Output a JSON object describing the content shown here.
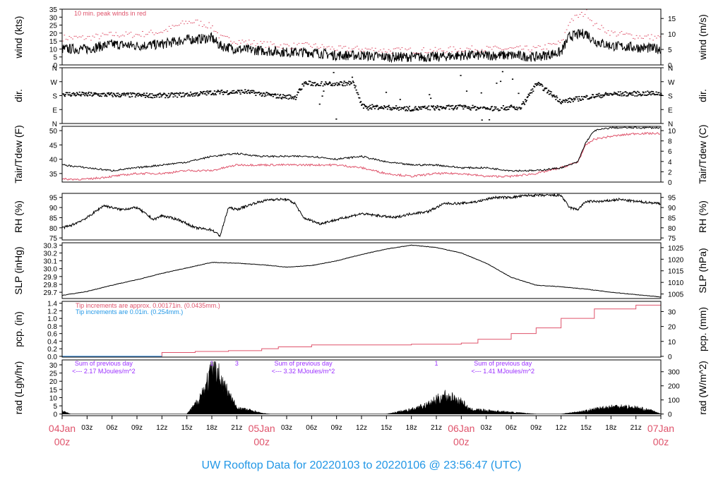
{
  "footer": {
    "title": "UW Rooftop Data for 20220103  to  20220106 @ 23:56:47  (UTC)"
  },
  "colors": {
    "main": "#000000",
    "peak": "#df536b",
    "dew": "#df536b",
    "tip_red": "#df536b",
    "tip_blue": "#2297e6",
    "sum": "#9b30ff",
    "date": "#df536b",
    "title": "#2297e6"
  },
  "xaxis": {
    "hour_labels": [
      "00z",
      "03z",
      "06z",
      "09z",
      "12z",
      "15z",
      "18z",
      "21z",
      "00z",
      "03z",
      "06z",
      "09z",
      "12z",
      "15z",
      "18z",
      "21z",
      "00z",
      "03z",
      "06z",
      "09z",
      "12z",
      "15z",
      "18z",
      "21z",
      "00z"
    ],
    "date_labels": [
      {
        "hour": 0,
        "date": "04Jan",
        "time": "00z"
      },
      {
        "hour": 24,
        "date": "05Jan",
        "time": "00z"
      },
      {
        "hour": 48,
        "date": "06Jan",
        "time": "00z"
      },
      {
        "hour": 72,
        "date": "07Jan",
        "time": "00z"
      }
    ],
    "range_hours": [
      0,
      72
    ]
  },
  "panels": {
    "wind": {
      "left_label": "wind (kts)",
      "right_label": "wind (m/s)",
      "left_ticks": [
        "0",
        "5",
        "10",
        "15",
        "20",
        "25",
        "30",
        "35"
      ],
      "right_ticks": [
        "0",
        "5",
        "10",
        "15"
      ],
      "note": "10 min. peak winds in red"
    },
    "dir": {
      "left_label": "dir.",
      "right_label": "dir.",
      "ticks": [
        "N",
        "E",
        "S",
        "W",
        "N"
      ]
    },
    "temp": {
      "left_label": "Tair/Tdew (F)",
      "right_label": "Tair/Tdew (C)",
      "left_ticks": [
        "35",
        "40",
        "45",
        "50"
      ],
      "right_ticks": [
        "0",
        "2",
        "4",
        "6",
        "8",
        "10"
      ]
    },
    "rh": {
      "left_label": "RH (%)",
      "right_label": "RH (%)",
      "ticks": [
        "75",
        "80",
        "85",
        "90",
        "95"
      ]
    },
    "slp": {
      "left_label": "SLP (inHg)",
      "right_label": "SLP (hPa)",
      "left_ticks": [
        "29.7",
        "29.8",
        "29.9",
        "30.0",
        "30.1",
        "30.2",
        "30.3"
      ],
      "right_ticks": [
        "1005",
        "1010",
        "1015",
        "1020",
        "1025"
      ]
    },
    "pcp": {
      "left_label": "pcp. (in)",
      "right_label": "pcp. (mm)",
      "left_ticks": [
        "0.0",
        "0.2",
        "0.4",
        "0.6",
        "0.8",
        "1.0",
        "1.2",
        "1.4"
      ],
      "right_ticks": [
        "0",
        "10",
        "20",
        "30"
      ],
      "note_red": "Tip increments are approx. 0.00171in. (0.0435mm.)",
      "note_blue": "Tip increments are 0.01in. (0.254mm.)"
    },
    "rad": {
      "left_label": "rad (Lgly/hr)",
      "right_label": "rad (W/m^2)",
      "left_ticks": [
        "0",
        "5",
        "10",
        "15",
        "20",
        "25",
        "30"
      ],
      "right_ticks": [
        "0",
        "100",
        "200",
        "300"
      ],
      "sums": [
        {
          "hour": 5,
          "line1": "Sum of previous day",
          "line2": "<--- 2.17 MJoules/m^2"
        },
        {
          "hour": 29,
          "line1": "Sum of previous day",
          "line2": "<--- 3.32 MJoules/m^2"
        },
        {
          "hour": 53,
          "line1": "Sum of previous day",
          "line2": "<--- 1.41 MJoules/m^2"
        }
      ],
      "tip_marks": [
        {
          "hour": 18,
          "text": "1"
        },
        {
          "hour": 21,
          "text": "3"
        },
        {
          "hour": 45,
          "text": "1"
        }
      ]
    }
  },
  "chart_data": {
    "type": "line",
    "x_unit": "hours since 04Jan 00z",
    "series": [
      {
        "name": "wind (kts)",
        "x": [
          0,
          3,
          6,
          9,
          12,
          15,
          16,
          18,
          19,
          21,
          24,
          27,
          30,
          33,
          36,
          39,
          42,
          45,
          48,
          51,
          54,
          57,
          60,
          61,
          63,
          64,
          66,
          69,
          72
        ],
        "values": [
          10,
          10,
          13,
          12,
          13,
          16,
          16,
          17,
          12,
          10,
          9,
          8,
          8,
          6,
          6,
          5,
          5,
          5,
          6,
          6,
          6,
          5,
          8,
          18,
          20,
          15,
          12,
          11,
          10
        ]
      },
      {
        "name": "10 min. peak winds in red",
        "x": [
          0,
          3,
          6,
          9,
          12,
          15,
          16,
          18,
          19,
          21,
          24,
          27,
          30,
          33,
          36,
          39,
          42,
          45,
          48,
          51,
          54,
          57,
          60,
          61,
          63,
          64,
          66,
          69,
          72
        ],
        "values": [
          17,
          17,
          19,
          19,
          21,
          27,
          27,
          24,
          17,
          15,
          13,
          12,
          12,
          10,
          10,
          9,
          9,
          9,
          10,
          10,
          10,
          10,
          14,
          28,
          33,
          25,
          20,
          18,
          17
        ]
      },
      {
        "name": "dir.",
        "x": [
          0,
          6,
          12,
          16,
          18,
          22,
          26,
          28,
          29,
          31,
          35,
          36,
          40,
          42,
          44,
          48,
          50,
          52,
          54,
          55,
          57,
          60,
          63,
          66,
          72
        ],
        "values": [
          190,
          185,
          180,
          190,
          200,
          205,
          175,
          170,
          260,
          255,
          260,
          110,
          100,
          95,
          100,
          105,
          100,
          95,
          105,
          95,
          260,
          140,
          170,
          190,
          195
        ]
      },
      {
        "name": "Tair (F)",
        "x": [
          0,
          3,
          6,
          9,
          12,
          15,
          18,
          21,
          24,
          27,
          30,
          33,
          36,
          39,
          42,
          45,
          48,
          51,
          54,
          57,
          60,
          62,
          63,
          64,
          66,
          69,
          72
        ],
        "values": [
          38,
          37,
          36,
          37,
          38,
          39,
          41,
          42,
          41,
          41,
          41,
          40,
          41,
          39,
          38,
          38,
          37,
          37,
          36,
          36,
          37,
          39,
          46,
          50,
          51,
          51,
          51
        ]
      },
      {
        "name": "Tdew (F)",
        "x": [
          0,
          3,
          6,
          9,
          12,
          15,
          18,
          21,
          24,
          27,
          30,
          33,
          36,
          39,
          42,
          45,
          48,
          51,
          54,
          57,
          60,
          62,
          63,
          64,
          66,
          69,
          72
        ],
        "values": [
          33,
          33,
          34,
          35,
          35,
          36,
          36,
          38,
          38,
          38,
          38,
          38,
          37,
          35,
          34,
          35,
          35,
          34,
          34,
          35,
          37,
          39,
          45,
          47,
          48,
          49,
          49
        ]
      },
      {
        "name": "RH (%)",
        "x": [
          0,
          1,
          3,
          5,
          7,
          9,
          11,
          12,
          14,
          16,
          18,
          19,
          20,
          21,
          23,
          25,
          27,
          28,
          29,
          31,
          33,
          35,
          36,
          38,
          40,
          42,
          44,
          46,
          48,
          50,
          52,
          54,
          56,
          58,
          60,
          61,
          62,
          63,
          65,
          67,
          69,
          72
        ],
        "values": [
          80,
          81,
          85,
          91,
          89,
          90,
          84,
          86,
          84,
          80,
          79,
          76,
          90,
          89,
          92,
          94,
          94,
          92,
          85,
          82,
          84,
          86,
          87,
          86,
          85,
          87,
          88,
          92,
          92,
          93,
          95,
          95,
          96,
          96,
          96,
          90,
          89,
          93,
          93,
          94,
          93,
          92
        ]
      },
      {
        "name": "SLP (inHg)",
        "x": [
          0,
          3,
          6,
          9,
          12,
          15,
          18,
          21,
          24,
          27,
          30,
          33,
          36,
          39,
          42,
          45,
          48,
          51,
          54,
          57,
          60,
          63,
          66,
          69,
          72
        ],
        "values": [
          29.66,
          29.71,
          29.79,
          29.86,
          29.94,
          30.01,
          30.08,
          30.07,
          30.05,
          30.02,
          30.04,
          30.1,
          30.18,
          30.25,
          30.3,
          30.27,
          30.2,
          30.07,
          29.89,
          29.79,
          29.77,
          29.74,
          29.7,
          29.67,
          29.64
        ]
      },
      {
        "name": "pcp. (in)",
        "x": [
          0,
          10,
          12,
          16,
          20,
          24,
          26,
          30,
          36,
          42,
          46,
          48,
          50,
          54,
          57,
          60,
          64,
          69,
          72
        ],
        "values": [
          0.0,
          0.0,
          0.1,
          0.13,
          0.15,
          0.2,
          0.25,
          0.3,
          0.3,
          0.32,
          0.32,
          0.35,
          0.45,
          0.6,
          0.75,
          1.0,
          1.25,
          1.35,
          1.45
        ]
      },
      {
        "name": "rad (Lgly/hr)",
        "x": [
          0,
          0.5,
          1,
          6,
          15,
          16,
          17,
          18,
          18.5,
          19,
          20,
          21,
          22,
          23,
          24,
          25,
          30,
          39,
          42,
          44,
          45,
          46,
          48,
          49,
          57,
          60,
          63,
          65,
          67,
          69,
          71,
          72
        ],
        "values": [
          2,
          1,
          0,
          0,
          0,
          6,
          15,
          27,
          32,
          22,
          13,
          4,
          3,
          2,
          0.5,
          0,
          0,
          0,
          3,
          6,
          9,
          12,
          8,
          3,
          0,
          0,
          2,
          4,
          5,
          4,
          2,
          0
        ]
      }
    ]
  }
}
